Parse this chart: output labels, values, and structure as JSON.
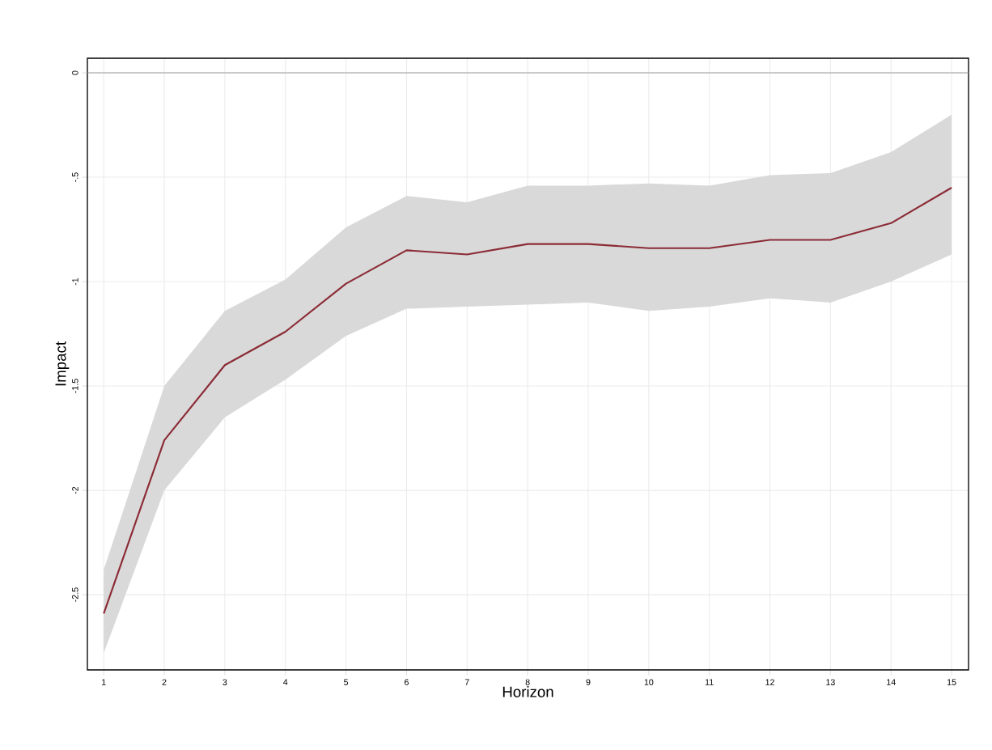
{
  "chart_data": {
    "type": "line",
    "xlabel": "Horizon",
    "ylabel": "Impact",
    "x": [
      1,
      2,
      3,
      4,
      5,
      6,
      7,
      8,
      9,
      10,
      11,
      12,
      13,
      14,
      15
    ],
    "series": [
      {
        "color": "#8b2b35",
        "values": [
          -2.59,
          -1.76,
          -1.4,
          -1.24,
          -1.01,
          -0.85,
          -0.87,
          -0.82,
          -0.82,
          -0.84,
          -0.84,
          -0.8,
          -0.8,
          -0.72,
          -0.55
        ],
        "lower": [
          -2.78,
          -2.0,
          -1.65,
          -1.47,
          -1.26,
          -1.13,
          -1.12,
          -1.11,
          -1.1,
          -1.14,
          -1.12,
          -1.08,
          -1.1,
          -1.0,
          -0.87
        ],
        "upper": [
          -2.38,
          -1.5,
          -1.14,
          -0.99,
          -0.74,
          -0.59,
          -0.62,
          -0.54,
          -0.54,
          -0.53,
          -0.54,
          -0.49,
          -0.48,
          -0.38,
          -0.2
        ]
      }
    ],
    "xlim": [
      0.73,
      15.28
    ],
    "ylim": [
      -2.86,
      0.07
    ],
    "xticks": [
      1,
      2,
      3,
      4,
      5,
      6,
      7,
      8,
      9,
      10,
      11,
      12,
      13,
      14,
      15
    ],
    "yticks": [
      {
        "value": -2.5,
        "label": "-2.5"
      },
      {
        "value": -2,
        "label": "-2"
      },
      {
        "value": -1.5,
        "label": "-1.5"
      },
      {
        "value": -1,
        "label": "-1"
      },
      {
        "value": -0.5,
        "label": "-.5"
      },
      {
        "value": 0,
        "label": "0"
      }
    ],
    "ref_lines": [
      {
        "axis": "y",
        "value": 0,
        "color": "#a0a0a0"
      }
    ],
    "grid": true,
    "legend": false,
    "marker": "none",
    "line_style": "solid"
  }
}
